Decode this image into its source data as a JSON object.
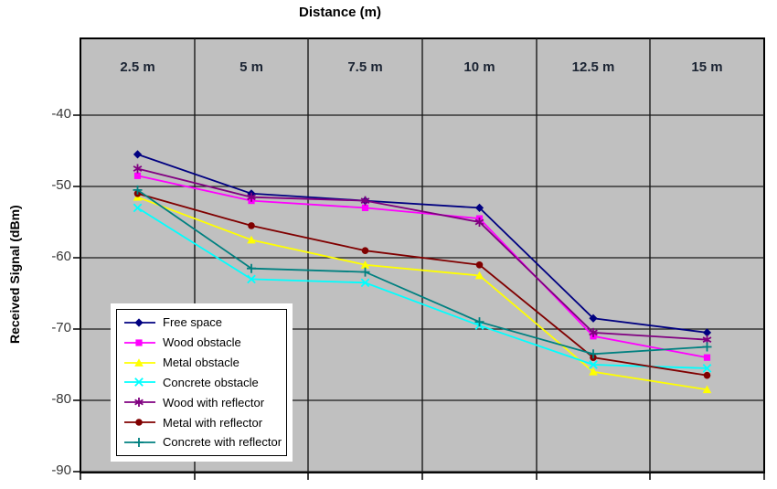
{
  "chart_data": {
    "type": "line",
    "title": "Distance (m)",
    "xlabel": "Distance (m)",
    "ylabel": "Received Signal (dBm)",
    "categories": [
      "2.5 m",
      "5 m",
      "7.5 m",
      "10 m",
      "12.5 m",
      "15 m"
    ],
    "x_values": [
      2.5,
      5,
      7.5,
      10,
      12.5,
      15
    ],
    "y_ticks": [
      -40,
      -50,
      -60,
      -70,
      -80,
      -90
    ],
    "y_tick_labels": [
      "-40",
      "-50",
      "-60",
      "-70",
      "-80",
      "-90"
    ],
    "ylim": [
      -90,
      -29
    ],
    "grid": true,
    "plot_background": "#c0c0c0",
    "gridline_color": "#1a1a1a",
    "legend_position": "inside-bottom-left",
    "series": [
      {
        "name": "Free space",
        "color": "#000080",
        "marker": "diamond",
        "values": [
          -45.5,
          -51,
          -52,
          -53,
          -68.5,
          -70.5
        ]
      },
      {
        "name": "Wood obstacle",
        "color": "#ff00ff",
        "marker": "square",
        "values": [
          -48.5,
          -52,
          -53,
          -54.5,
          -71,
          -74
        ]
      },
      {
        "name": "Metal obstacle",
        "color": "#ffff00",
        "marker": "triangle",
        "values": [
          -51.5,
          -57.5,
          -61,
          -62.5,
          -76,
          -78.5
        ]
      },
      {
        "name": "Concrete obstacle",
        "color": "#00ffff",
        "marker": "x",
        "values": [
          -53,
          -63,
          -63.5,
          -69.5,
          -75,
          -75.5
        ]
      },
      {
        "name": "Wood with reflector",
        "color": "#800080",
        "marker": "asterisk",
        "values": [
          -47.5,
          -51.5,
          -52,
          -55,
          -70.5,
          -71.5
        ]
      },
      {
        "name": "Metal with reflector",
        "color": "#800000",
        "marker": "circle",
        "values": [
          -51,
          -55.5,
          -59,
          -61,
          -74,
          -76.5
        ]
      },
      {
        "name": "Concrete with reflector",
        "color": "#008080",
        "marker": "plus",
        "values": [
          -50.5,
          -61.5,
          -62,
          -69,
          -73.5,
          -72.5
        ]
      }
    ]
  }
}
